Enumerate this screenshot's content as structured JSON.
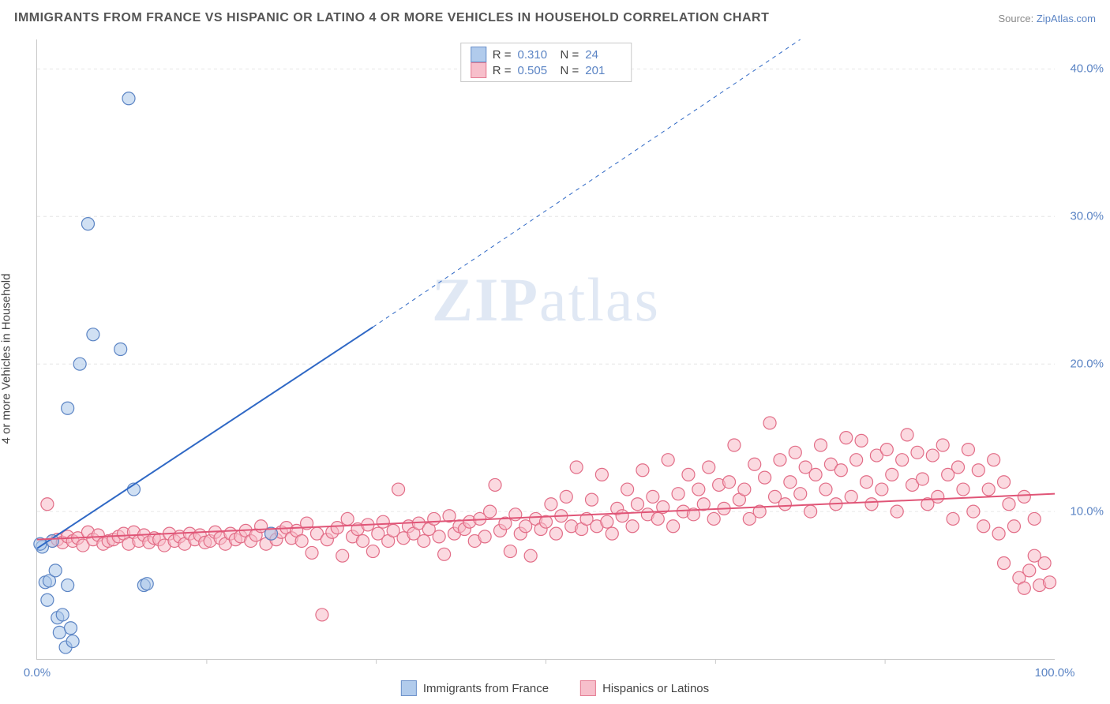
{
  "title": "IMMIGRANTS FROM FRANCE VS HISPANIC OR LATINO 4 OR MORE VEHICLES IN HOUSEHOLD CORRELATION CHART",
  "source_prefix": "Source: ",
  "source_name": "ZipAtlas.com",
  "ylabel": "4 or more Vehicles in Household",
  "watermark": "ZIPatlas",
  "chart": {
    "type": "scatter",
    "xlim": [
      0,
      100
    ],
    "ylim": [
      0,
      42
    ],
    "xticks": [
      0,
      100
    ],
    "xtick_labels": [
      "0.0%",
      "100.0%"
    ],
    "xtick_minor": [
      16.67,
      33.33,
      50,
      66.67,
      83.33
    ],
    "yticks": [
      10,
      20,
      30,
      40
    ],
    "ytick_labels": [
      "10.0%",
      "20.0%",
      "30.0%",
      "40.0%"
    ],
    "background_color": "#ffffff",
    "grid_color": "#e6e6e6",
    "axis_color": "#c9c9c9",
    "series": [
      {
        "id": "france",
        "label": "Immigrants from France",
        "fill": "#a9c6ea",
        "fill_opacity": 0.55,
        "stroke": "#5b84c4",
        "marker_radius": 8,
        "R": "0.310",
        "N": "24",
        "regression": {
          "solid_from": [
            0,
            7.5
          ],
          "solid_to": [
            33,
            22.5
          ],
          "dashed_to": [
            75,
            42
          ],
          "stroke": "#2f68c5",
          "width": 2
        },
        "points": [
          [
            0.5,
            7.6
          ],
          [
            0.8,
            5.2
          ],
          [
            1.0,
            4.0
          ],
          [
            1.2,
            5.3
          ],
          [
            1.5,
            8.0
          ],
          [
            2.0,
            2.8
          ],
          [
            2.2,
            1.8
          ],
          [
            2.5,
            3.0
          ],
          [
            2.8,
            0.8
          ],
          [
            3.0,
            5.0
          ],
          [
            3.3,
            2.1
          ],
          [
            3.5,
            1.2
          ],
          [
            3.0,
            17.0
          ],
          [
            4.2,
            20.0
          ],
          [
            5.5,
            22.0
          ],
          [
            5.0,
            29.5
          ],
          [
            8.2,
            21.0
          ],
          [
            9.0,
            38.0
          ],
          [
            9.5,
            11.5
          ],
          [
            10.5,
            5.0
          ],
          [
            10.8,
            5.1
          ],
          [
            23.0,
            8.5
          ],
          [
            1.8,
            6.0
          ],
          [
            0.3,
            7.8
          ]
        ]
      },
      {
        "id": "hispanic",
        "label": "Hispanics or Latinos",
        "fill": "#f7b9c6",
        "fill_opacity": 0.55,
        "stroke": "#e26d87",
        "marker_radius": 8,
        "R": "0.505",
        "N": "201",
        "regression": {
          "solid_from": [
            0,
            8.1
          ],
          "solid_to": [
            100,
            11.2
          ],
          "stroke": "#e05577",
          "width": 2
        },
        "points": [
          [
            1.0,
            10.5
          ],
          [
            1.5,
            8.0
          ],
          [
            2.0,
            8.1
          ],
          [
            2.5,
            7.9
          ],
          [
            3.0,
            8.3
          ],
          [
            3.5,
            8.0
          ],
          [
            4.0,
            8.2
          ],
          [
            4.5,
            7.7
          ],
          [
            5.0,
            8.6
          ],
          [
            5.5,
            8.1
          ],
          [
            6.0,
            8.4
          ],
          [
            6.5,
            7.8
          ],
          [
            7.0,
            8.0
          ],
          [
            7.5,
            8.1
          ],
          [
            8.0,
            8.3
          ],
          [
            8.5,
            8.5
          ],
          [
            9.0,
            7.8
          ],
          [
            9.5,
            8.6
          ],
          [
            10.0,
            8.0
          ],
          [
            10.5,
            8.4
          ],
          [
            11.0,
            7.9
          ],
          [
            11.5,
            8.2
          ],
          [
            12.0,
            8.1
          ],
          [
            12.5,
            7.7
          ],
          [
            13.0,
            8.5
          ],
          [
            13.5,
            8.0
          ],
          [
            14.0,
            8.3
          ],
          [
            14.5,
            7.8
          ],
          [
            15.0,
            8.5
          ],
          [
            15.5,
            8.1
          ],
          [
            16.0,
            8.4
          ],
          [
            16.5,
            7.9
          ],
          [
            17.0,
            8.0
          ],
          [
            17.5,
            8.6
          ],
          [
            18.0,
            8.2
          ],
          [
            18.5,
            7.8
          ],
          [
            19.0,
            8.5
          ],
          [
            19.5,
            8.1
          ],
          [
            20.0,
            8.3
          ],
          [
            20.5,
            8.7
          ],
          [
            21.0,
            8.0
          ],
          [
            21.5,
            8.4
          ],
          [
            22.0,
            9.0
          ],
          [
            22.5,
            7.8
          ],
          [
            23.0,
            8.5
          ],
          [
            23.5,
            8.1
          ],
          [
            24.0,
            8.6
          ],
          [
            24.5,
            8.9
          ],
          [
            25.0,
            8.2
          ],
          [
            25.5,
            8.7
          ],
          [
            26.0,
            8.0
          ],
          [
            26.5,
            9.2
          ],
          [
            27.0,
            7.2
          ],
          [
            27.5,
            8.5
          ],
          [
            28.0,
            3.0
          ],
          [
            28.5,
            8.1
          ],
          [
            29.0,
            8.6
          ],
          [
            29.5,
            8.9
          ],
          [
            30.0,
            7.0
          ],
          [
            30.5,
            9.5
          ],
          [
            31.0,
            8.3
          ],
          [
            31.5,
            8.8
          ],
          [
            32.0,
            8.0
          ],
          [
            32.5,
            9.1
          ],
          [
            33.0,
            7.3
          ],
          [
            33.5,
            8.5
          ],
          [
            34.0,
            9.3
          ],
          [
            34.5,
            8.0
          ],
          [
            35.0,
            8.7
          ],
          [
            35.5,
            11.5
          ],
          [
            36.0,
            8.2
          ],
          [
            36.5,
            9.0
          ],
          [
            37.0,
            8.5
          ],
          [
            37.5,
            9.2
          ],
          [
            38.0,
            8.0
          ],
          [
            38.5,
            8.8
          ],
          [
            39.0,
            9.5
          ],
          [
            39.5,
            8.3
          ],
          [
            40.0,
            7.1
          ],
          [
            40.5,
            9.7
          ],
          [
            41.0,
            8.5
          ],
          [
            41.5,
            9.0
          ],
          [
            42.0,
            8.8
          ],
          [
            42.5,
            9.3
          ],
          [
            43.0,
            8.0
          ],
          [
            43.5,
            9.5
          ],
          [
            44.0,
            8.3
          ],
          [
            44.5,
            10.0
          ],
          [
            45.0,
            11.8
          ],
          [
            45.5,
            8.7
          ],
          [
            46.0,
            9.2
          ],
          [
            46.5,
            7.3
          ],
          [
            47.0,
            9.8
          ],
          [
            47.5,
            8.5
          ],
          [
            48.0,
            9.0
          ],
          [
            48.5,
            7.0
          ],
          [
            49.0,
            9.5
          ],
          [
            49.5,
            8.8
          ],
          [
            50.0,
            9.3
          ],
          [
            50.5,
            10.5
          ],
          [
            51.0,
            8.5
          ],
          [
            51.5,
            9.7
          ],
          [
            52.0,
            11.0
          ],
          [
            52.5,
            9.0
          ],
          [
            53.0,
            13.0
          ],
          [
            53.5,
            8.8
          ],
          [
            54.0,
            9.5
          ],
          [
            54.5,
            10.8
          ],
          [
            55.0,
            9.0
          ],
          [
            55.5,
            12.5
          ],
          [
            56.0,
            9.3
          ],
          [
            56.5,
            8.5
          ],
          [
            57.0,
            10.2
          ],
          [
            57.5,
            9.7
          ],
          [
            58.0,
            11.5
          ],
          [
            58.5,
            9.0
          ],
          [
            59.0,
            10.5
          ],
          [
            59.5,
            12.8
          ],
          [
            60.0,
            9.8
          ],
          [
            60.5,
            11.0
          ],
          [
            61.0,
            9.5
          ],
          [
            61.5,
            10.3
          ],
          [
            62.0,
            13.5
          ],
          [
            62.5,
            9.0
          ],
          [
            63.0,
            11.2
          ],
          [
            63.5,
            10.0
          ],
          [
            64.0,
            12.5
          ],
          [
            64.5,
            9.8
          ],
          [
            65.0,
            11.5
          ],
          [
            65.5,
            10.5
          ],
          [
            66.0,
            13.0
          ],
          [
            66.5,
            9.5
          ],
          [
            67.0,
            11.8
          ],
          [
            67.5,
            10.2
          ],
          [
            68.0,
            12.0
          ],
          [
            68.5,
            14.5
          ],
          [
            69.0,
            10.8
          ],
          [
            69.5,
            11.5
          ],
          [
            70.0,
            9.5
          ],
          [
            70.5,
            13.2
          ],
          [
            71.0,
            10.0
          ],
          [
            71.5,
            12.3
          ],
          [
            72.0,
            16.0
          ],
          [
            72.5,
            11.0
          ],
          [
            73.0,
            13.5
          ],
          [
            73.5,
            10.5
          ],
          [
            74.0,
            12.0
          ],
          [
            74.5,
            14.0
          ],
          [
            75.0,
            11.2
          ],
          [
            75.5,
            13.0
          ],
          [
            76.0,
            10.0
          ],
          [
            76.5,
            12.5
          ],
          [
            77.0,
            14.5
          ],
          [
            77.5,
            11.5
          ],
          [
            78.0,
            13.2
          ],
          [
            78.5,
            10.5
          ],
          [
            79.0,
            12.8
          ],
          [
            79.5,
            15.0
          ],
          [
            80.0,
            11.0
          ],
          [
            80.5,
            13.5
          ],
          [
            81.0,
            14.8
          ],
          [
            81.5,
            12.0
          ],
          [
            82.0,
            10.5
          ],
          [
            82.5,
            13.8
          ],
          [
            83.0,
            11.5
          ],
          [
            83.5,
            14.2
          ],
          [
            84.0,
            12.5
          ],
          [
            84.5,
            10.0
          ],
          [
            85.0,
            13.5
          ],
          [
            85.5,
            15.2
          ],
          [
            86.0,
            11.8
          ],
          [
            86.5,
            14.0
          ],
          [
            87.0,
            12.2
          ],
          [
            87.5,
            10.5
          ],
          [
            88.0,
            13.8
          ],
          [
            88.5,
            11.0
          ],
          [
            89.0,
            14.5
          ],
          [
            89.5,
            12.5
          ],
          [
            90.0,
            9.5
          ],
          [
            90.5,
            13.0
          ],
          [
            91.0,
            11.5
          ],
          [
            91.5,
            14.2
          ],
          [
            92.0,
            10.0
          ],
          [
            92.5,
            12.8
          ],
          [
            93.0,
            9.0
          ],
          [
            93.5,
            11.5
          ],
          [
            94.0,
            13.5
          ],
          [
            94.5,
            8.5
          ],
          [
            95.0,
            12.0
          ],
          [
            95.5,
            10.5
          ],
          [
            96.0,
            9.0
          ],
          [
            96.5,
            5.5
          ],
          [
            97.0,
            11.0
          ],
          [
            97.5,
            6.0
          ],
          [
            98.0,
            9.5
          ],
          [
            98.5,
            5.0
          ],
          [
            99.0,
            6.5
          ],
          [
            99.5,
            5.2
          ],
          [
            97.0,
            4.8
          ],
          [
            98.0,
            7.0
          ],
          [
            95.0,
            6.5
          ]
        ]
      }
    ]
  },
  "legend": {
    "france": "Immigrants from France",
    "hispanic": "Hispanics or Latinos"
  },
  "stats": {
    "r_label": "R =",
    "n_label": "N ="
  }
}
